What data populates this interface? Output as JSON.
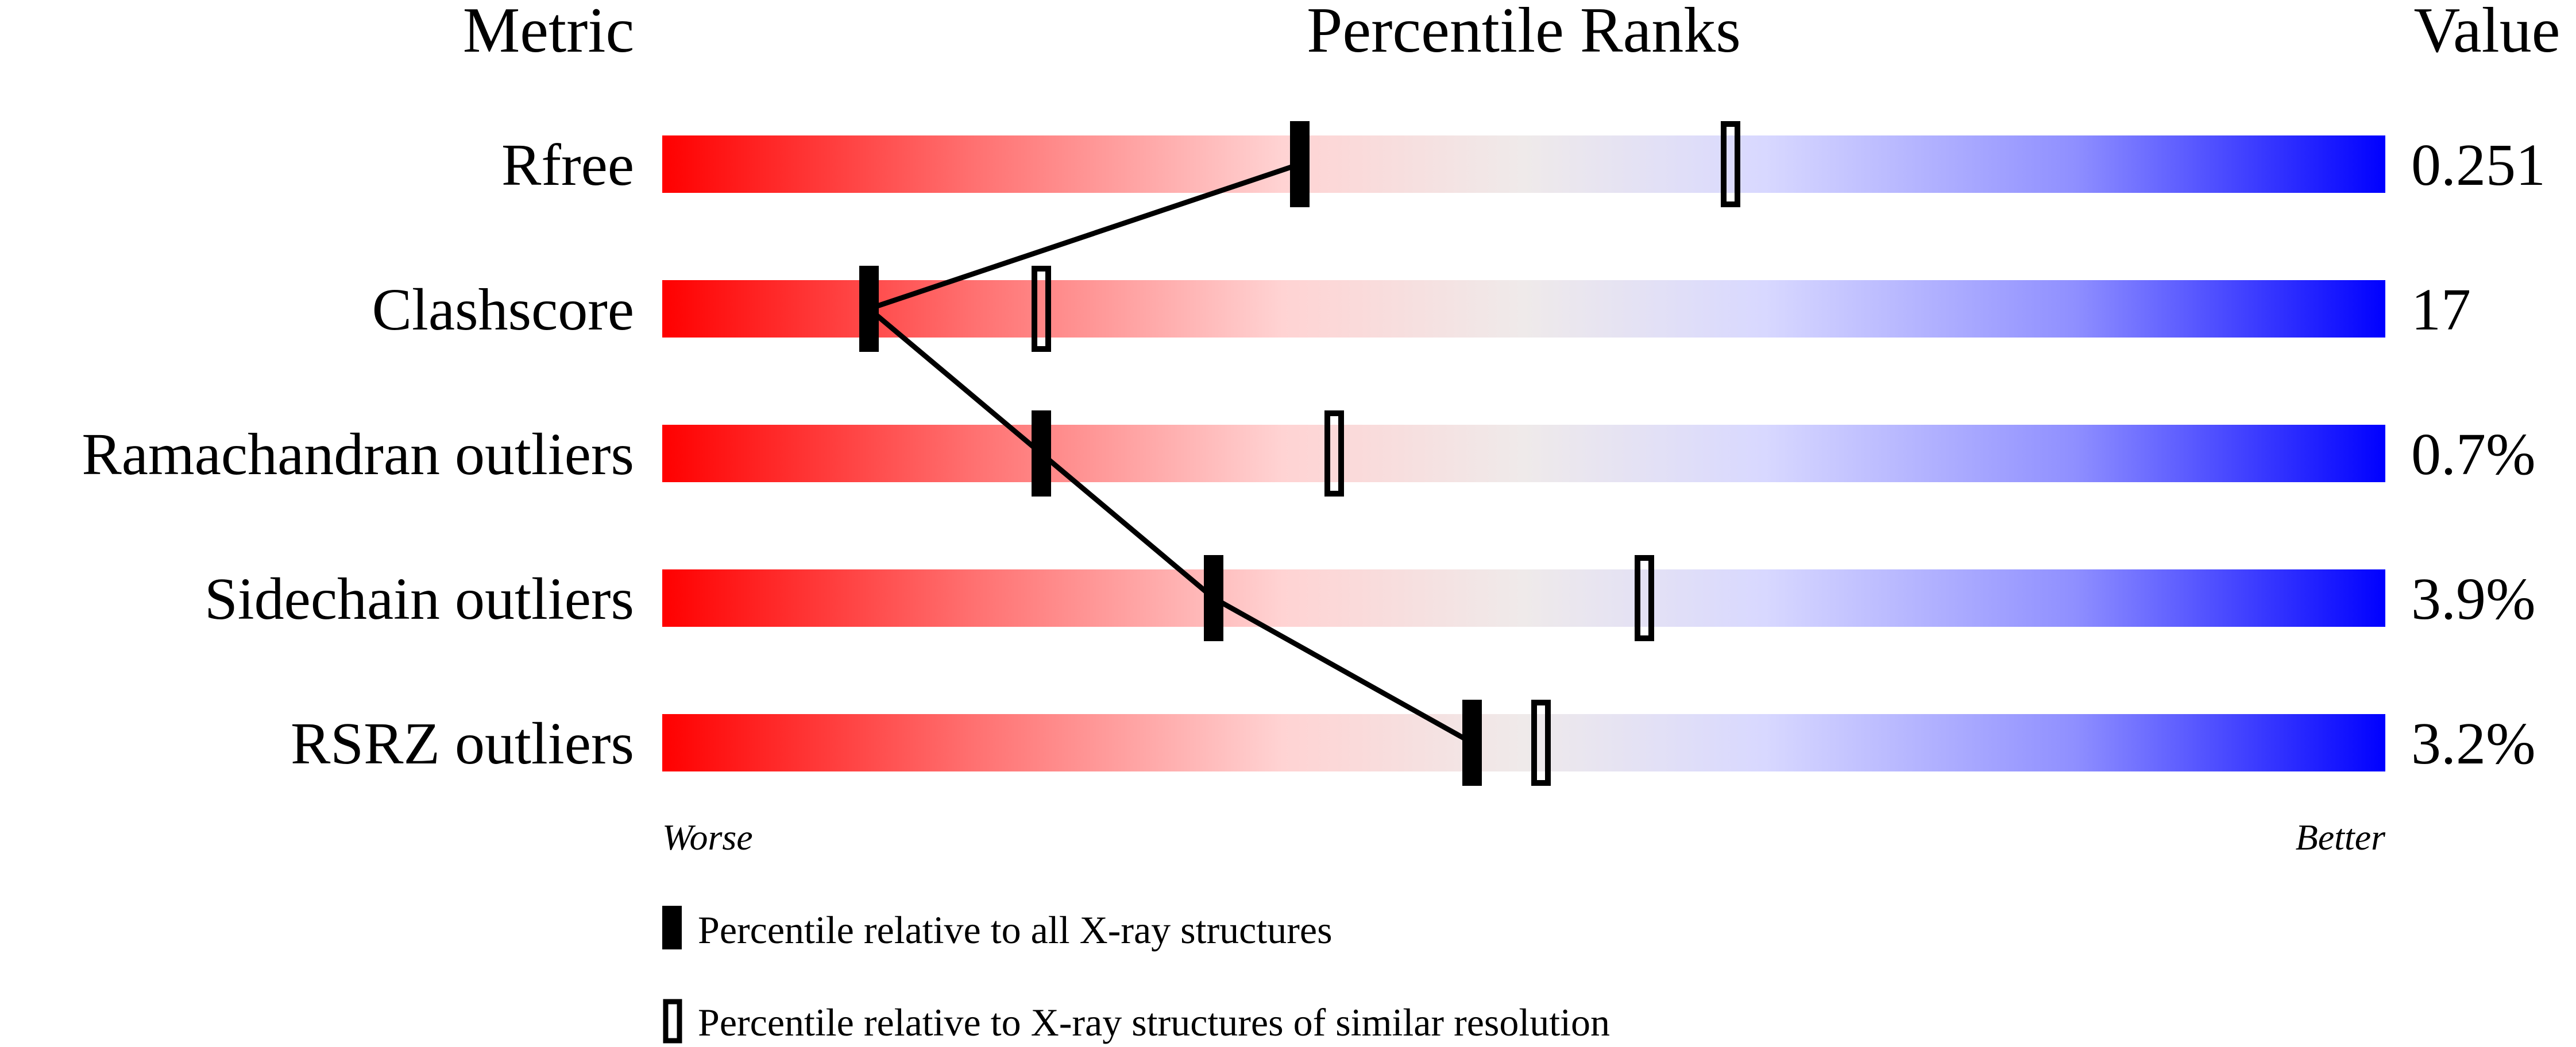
{
  "chart_data": {
    "type": "bar",
    "headers": {
      "metric": "Metric",
      "ranks": "Percentile Ranks",
      "value": "Value"
    },
    "xlim": [
      0,
      100
    ],
    "metrics": [
      {
        "name": "Rfree",
        "value": "0.251",
        "percentile_all": 37,
        "percentile_similar": 62
      },
      {
        "name": "Clashscore",
        "value": "17",
        "percentile_all": 12,
        "percentile_similar": 22
      },
      {
        "name": "Ramachandran outliers",
        "value": "0.7%",
        "percentile_all": 22,
        "percentile_similar": 39
      },
      {
        "name": "Sidechain outliers",
        "value": "3.9%",
        "percentile_all": 32,
        "percentile_similar": 57
      },
      {
        "name": "RSRZ outliers",
        "value": "3.2%",
        "percentile_all": 47,
        "percentile_similar": 51
      }
    ],
    "scale_labels": {
      "left": "Worse",
      "right": "Better"
    },
    "legend": [
      {
        "marker": "filled",
        "label": "Percentile relative to all X-ray structures"
      },
      {
        "marker": "open",
        "label": "Percentile relative to X-ray structures of similar resolution"
      }
    ],
    "colors": {
      "worse": "#ff0000",
      "middle": "#eeeeee",
      "better": "#0000ff"
    }
  }
}
